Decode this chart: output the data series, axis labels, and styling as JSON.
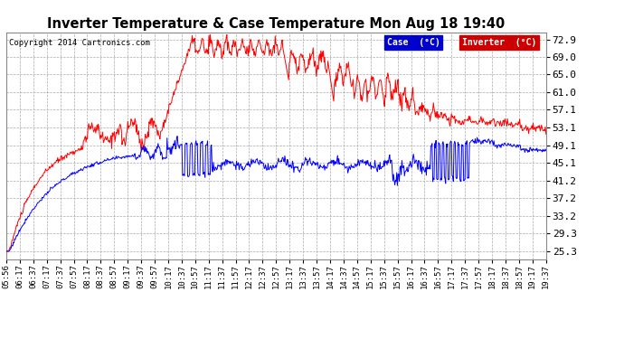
{
  "title": "Inverter Temperature & Case Temperature Mon Aug 18 19:40",
  "copyright": "Copyright 2014 Cartronics.com",
  "legend_case_label": "Case  (°C)",
  "legend_inv_label": "Inverter  (°C)",
  "case_color": "#0000ff",
  "inverter_color": "#ff0000",
  "bg_color": "#ffffff",
  "plot_bg_color": "#ffffff",
  "ylim": [
    23.5,
    74.5
  ],
  "yticks": [
    25.3,
    29.3,
    33.2,
    37.2,
    41.2,
    45.1,
    49.1,
    53.1,
    57.1,
    61.0,
    65.0,
    69.0,
    72.9
  ],
  "xtick_labels": [
    "05:56",
    "06:17",
    "06:37",
    "07:17",
    "07:37",
    "07:57",
    "08:17",
    "08:37",
    "08:57",
    "09:17",
    "09:37",
    "09:57",
    "10:17",
    "10:37",
    "10:57",
    "11:17",
    "11:37",
    "11:57",
    "12:17",
    "12:37",
    "12:57",
    "13:17",
    "13:37",
    "13:57",
    "14:17",
    "14:37",
    "14:57",
    "15:17",
    "15:37",
    "15:57",
    "16:17",
    "16:37",
    "16:57",
    "17:17",
    "17:37",
    "17:57",
    "18:17",
    "18:37",
    "18:57",
    "19:17",
    "19:37"
  ]
}
